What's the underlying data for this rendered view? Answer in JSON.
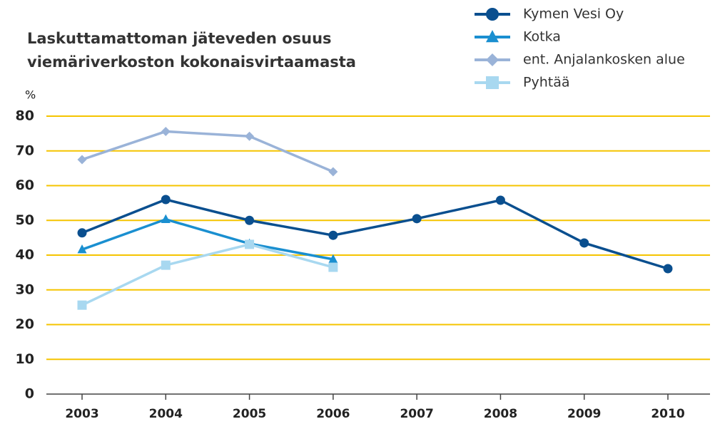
{
  "chart_data": {
    "type": "line",
    "title": [
      "Laskuttamattoman jäteveden osuus",
      "viemäriverkoston kokonaisvirtaamasta"
    ],
    "y_label": "%",
    "categories": [
      "2003",
      "2004",
      "2005",
      "2006",
      "2007",
      "2008",
      "2009",
      "2010"
    ],
    "series": [
      {
        "name": "Kymen Vesi Oy",
        "color": "#0a4f8f",
        "marker": "circle",
        "values": [
          46.4,
          56,
          50,
          45.7,
          50.5,
          55.8,
          43.5,
          36.1
        ]
      },
      {
        "name": "Kotka",
        "color": "#1a8fd0",
        "marker": "triangle",
        "values": [
          41.6,
          50.3,
          43.3,
          38.8,
          null,
          null,
          null,
          null
        ]
      },
      {
        "name": "ent. Anjalankosken alue",
        "color": "#9ab3d8",
        "marker": "diamond",
        "values": [
          67.5,
          75.6,
          74.2,
          64,
          null,
          null,
          null,
          null
        ]
      },
      {
        "name": "Pyhtää",
        "color": "#a8d8f0",
        "marker": "square",
        "values": [
          25.6,
          37.1,
          43.1,
          36.5,
          null,
          null,
          null,
          null
        ]
      }
    ],
    "ylim": [
      0,
      80
    ],
    "yticks": [
      0,
      10,
      20,
      30,
      40,
      50,
      60,
      70,
      80
    ],
    "grid": true,
    "grid_color": "#f5c400",
    "legend": "top-right"
  }
}
